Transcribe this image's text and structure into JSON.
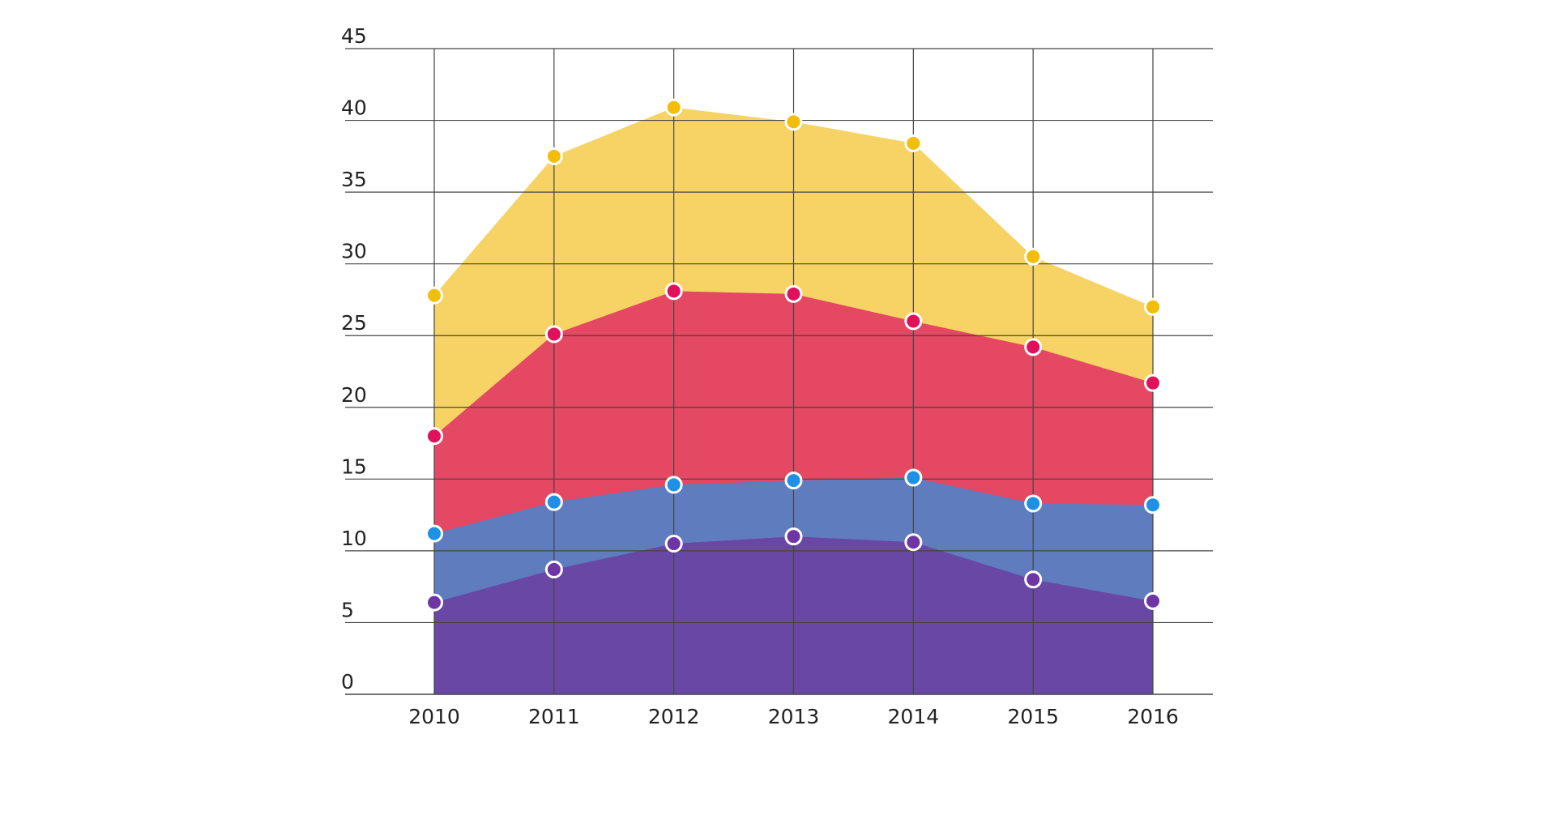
{
  "chart_data": {
    "type": "area",
    "stacked": false,
    "title": "",
    "xlabel": "",
    "ylabel": "",
    "categories": [
      "2010",
      "2011",
      "2012",
      "2013",
      "2014",
      "2015",
      "2016"
    ],
    "ylim": [
      0,
      45
    ],
    "yticks": [
      0,
      5,
      10,
      15,
      20,
      25,
      30,
      35,
      40,
      45
    ],
    "grid": true,
    "legend": "none",
    "series": [
      {
        "color": "#F7D264",
        "marker_color": "#F2BE0A",
        "values": [
          27.8,
          37.5,
          40.9,
          39.9,
          38.4,
          30.5,
          27.0
        ]
      },
      {
        "color": "#E54862",
        "marker_color": "#E0105A",
        "values": [
          18.0,
          25.1,
          28.1,
          27.9,
          26.0,
          24.2,
          21.7
        ]
      },
      {
        "color": "#5F7CBE",
        "marker_color": "#1E90E6",
        "values": [
          11.2,
          13.4,
          14.6,
          14.9,
          15.1,
          13.3,
          13.2
        ]
      },
      {
        "color": "#6848A4",
        "marker_color": "#7035A5",
        "values": [
          6.4,
          8.7,
          10.5,
          11.0,
          10.6,
          8.0,
          6.5
        ]
      }
    ]
  }
}
